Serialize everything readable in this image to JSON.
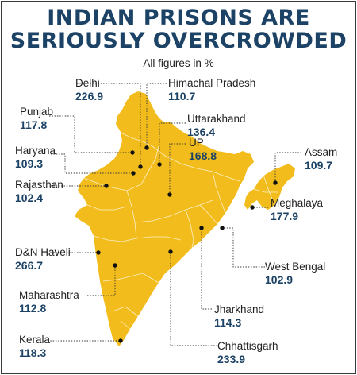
{
  "title_line1": "INDIAN PRISONS ARE",
  "title_line2": "SERIOUSLY OVERCROWDED",
  "subtitle": "All figures in %",
  "map_fill_color": "#f2bd1c",
  "label_value_color": "#1c4366",
  "states": [
    {
      "name": "Delhi",
      "value": "226.9"
    },
    {
      "name": "Himachal Pradesh",
      "value": "110.7"
    },
    {
      "name": "Punjab",
      "value": "117.8"
    },
    {
      "name": "Uttarakhand",
      "value": "136.4"
    },
    {
      "name": "Haryana",
      "value": "109.3"
    },
    {
      "name": "UP",
      "value": "168.8"
    },
    {
      "name": "Assam",
      "value": "109.7"
    },
    {
      "name": "Rajasthan",
      "value": "102.4"
    },
    {
      "name": "Meghalaya",
      "value": "177.9"
    },
    {
      "name": "D&N Haveli",
      "value": "266.7"
    },
    {
      "name": "West Bengal",
      "value": "102.9"
    },
    {
      "name": "Maharashtra",
      "value": "112.8"
    },
    {
      "name": "Jharkhand",
      "value": "114.3"
    },
    {
      "name": "Kerala",
      "value": "118.3"
    },
    {
      "name": "Chhattisgarh",
      "value": "233.9"
    }
  ]
}
